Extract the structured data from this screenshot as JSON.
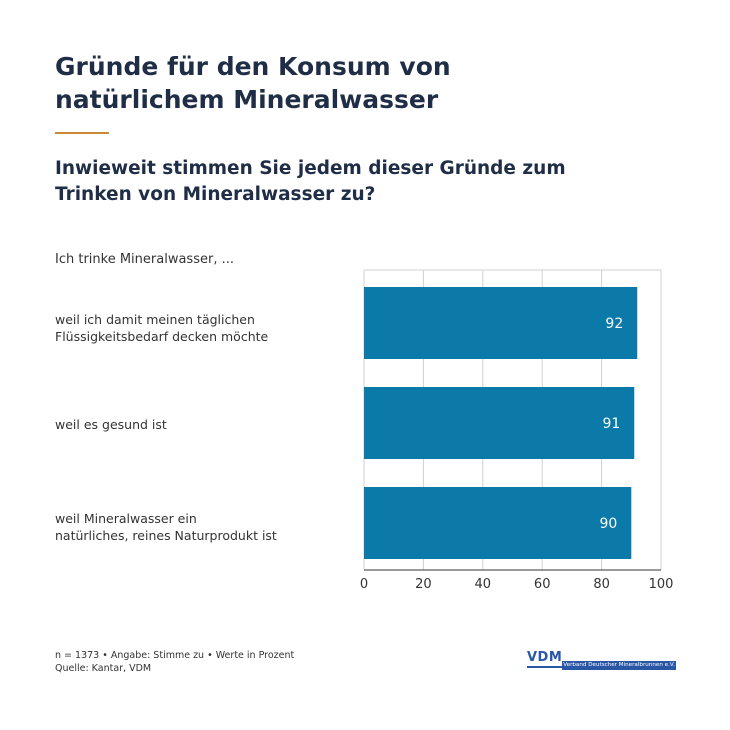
{
  "title_lines": [
    "Gründe für den Konsum von",
    "natürlichem Mineralwasser"
  ],
  "question_lines": [
    "Inwieweit stimmen Sie jedem dieser Gründe zum",
    "Trinken von Mineralwasser zu?"
  ],
  "lead": "Ich trinke Mineralwasser, ...",
  "footnote": {
    "line1": "n = 1373 • Angabe: Stimme zu • Werte in Prozent",
    "line2": "Quelle: Kantar, VDM"
  },
  "logo": {
    "abbr": "VDM",
    "full": "Verband Deutscher Mineralbrunnen e.V."
  },
  "colors": {
    "title": "#1f2e46",
    "accent_rule": "#c88a37",
    "bar": "#0b7aa8",
    "grid": "#d0d0d0",
    "logo": "#2a57a5"
  },
  "chart_data": {
    "type": "bar",
    "orientation": "horizontal",
    "categories": [
      [
        "weil ich damit meinen täglichen",
        "Flüssigkeitsbedarf decken möchte"
      ],
      [
        "weil es gesund ist"
      ],
      [
        "weil Mineralwasser ein",
        "natürliches, reines Naturprodukt ist"
      ]
    ],
    "values": [
      92,
      91,
      90
    ],
    "value_labels": [
      "92",
      "91",
      "90"
    ],
    "xlim": [
      0,
      100
    ],
    "xticks": [
      "0",
      "20",
      "40",
      "60",
      "80",
      "100"
    ],
    "grid": true
  }
}
